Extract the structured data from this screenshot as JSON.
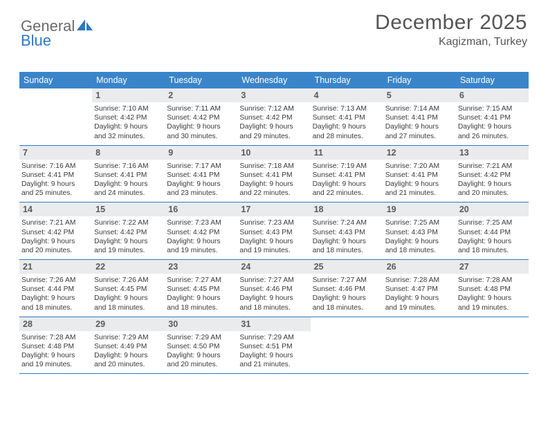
{
  "brand": {
    "part1": "General",
    "part2": "Blue"
  },
  "title": {
    "month": "December 2025",
    "location": "Kagizman, Turkey"
  },
  "colors": {
    "header_bg": "#3a85c9",
    "rule": "#2e78c2",
    "daynum_bg": "#e9ebec",
    "text": "#3a3a3a"
  },
  "dayNames": [
    "Sunday",
    "Monday",
    "Tuesday",
    "Wednesday",
    "Thursday",
    "Friday",
    "Saturday"
  ],
  "weeks": [
    [
      null,
      {
        "n": "1",
        "sr": "Sunrise: 7:10 AM",
        "ss": "Sunset: 4:42 PM",
        "d1": "Daylight: 9 hours",
        "d2": "and 32 minutes."
      },
      {
        "n": "2",
        "sr": "Sunrise: 7:11 AM",
        "ss": "Sunset: 4:42 PM",
        "d1": "Daylight: 9 hours",
        "d2": "and 30 minutes."
      },
      {
        "n": "3",
        "sr": "Sunrise: 7:12 AM",
        "ss": "Sunset: 4:42 PM",
        "d1": "Daylight: 9 hours",
        "d2": "and 29 minutes."
      },
      {
        "n": "4",
        "sr": "Sunrise: 7:13 AM",
        "ss": "Sunset: 4:41 PM",
        "d1": "Daylight: 9 hours",
        "d2": "and 28 minutes."
      },
      {
        "n": "5",
        "sr": "Sunrise: 7:14 AM",
        "ss": "Sunset: 4:41 PM",
        "d1": "Daylight: 9 hours",
        "d2": "and 27 minutes."
      },
      {
        "n": "6",
        "sr": "Sunrise: 7:15 AM",
        "ss": "Sunset: 4:41 PM",
        "d1": "Daylight: 9 hours",
        "d2": "and 26 minutes."
      }
    ],
    [
      {
        "n": "7",
        "sr": "Sunrise: 7:16 AM",
        "ss": "Sunset: 4:41 PM",
        "d1": "Daylight: 9 hours",
        "d2": "and 25 minutes."
      },
      {
        "n": "8",
        "sr": "Sunrise: 7:16 AM",
        "ss": "Sunset: 4:41 PM",
        "d1": "Daylight: 9 hours",
        "d2": "and 24 minutes."
      },
      {
        "n": "9",
        "sr": "Sunrise: 7:17 AM",
        "ss": "Sunset: 4:41 PM",
        "d1": "Daylight: 9 hours",
        "d2": "and 23 minutes."
      },
      {
        "n": "10",
        "sr": "Sunrise: 7:18 AM",
        "ss": "Sunset: 4:41 PM",
        "d1": "Daylight: 9 hours",
        "d2": "and 22 minutes."
      },
      {
        "n": "11",
        "sr": "Sunrise: 7:19 AM",
        "ss": "Sunset: 4:41 PM",
        "d1": "Daylight: 9 hours",
        "d2": "and 22 minutes."
      },
      {
        "n": "12",
        "sr": "Sunrise: 7:20 AM",
        "ss": "Sunset: 4:41 PM",
        "d1": "Daylight: 9 hours",
        "d2": "and 21 minutes."
      },
      {
        "n": "13",
        "sr": "Sunrise: 7:21 AM",
        "ss": "Sunset: 4:42 PM",
        "d1": "Daylight: 9 hours",
        "d2": "and 20 minutes."
      }
    ],
    [
      {
        "n": "14",
        "sr": "Sunrise: 7:21 AM",
        "ss": "Sunset: 4:42 PM",
        "d1": "Daylight: 9 hours",
        "d2": "and 20 minutes."
      },
      {
        "n": "15",
        "sr": "Sunrise: 7:22 AM",
        "ss": "Sunset: 4:42 PM",
        "d1": "Daylight: 9 hours",
        "d2": "and 19 minutes."
      },
      {
        "n": "16",
        "sr": "Sunrise: 7:23 AM",
        "ss": "Sunset: 4:42 PM",
        "d1": "Daylight: 9 hours",
        "d2": "and 19 minutes."
      },
      {
        "n": "17",
        "sr": "Sunrise: 7:23 AM",
        "ss": "Sunset: 4:43 PM",
        "d1": "Daylight: 9 hours",
        "d2": "and 19 minutes."
      },
      {
        "n": "18",
        "sr": "Sunrise: 7:24 AM",
        "ss": "Sunset: 4:43 PM",
        "d1": "Daylight: 9 hours",
        "d2": "and 18 minutes."
      },
      {
        "n": "19",
        "sr": "Sunrise: 7:25 AM",
        "ss": "Sunset: 4:43 PM",
        "d1": "Daylight: 9 hours",
        "d2": "and 18 minutes."
      },
      {
        "n": "20",
        "sr": "Sunrise: 7:25 AM",
        "ss": "Sunset: 4:44 PM",
        "d1": "Daylight: 9 hours",
        "d2": "and 18 minutes."
      }
    ],
    [
      {
        "n": "21",
        "sr": "Sunrise: 7:26 AM",
        "ss": "Sunset: 4:44 PM",
        "d1": "Daylight: 9 hours",
        "d2": "and 18 minutes."
      },
      {
        "n": "22",
        "sr": "Sunrise: 7:26 AM",
        "ss": "Sunset: 4:45 PM",
        "d1": "Daylight: 9 hours",
        "d2": "and 18 minutes."
      },
      {
        "n": "23",
        "sr": "Sunrise: 7:27 AM",
        "ss": "Sunset: 4:45 PM",
        "d1": "Daylight: 9 hours",
        "d2": "and 18 minutes."
      },
      {
        "n": "24",
        "sr": "Sunrise: 7:27 AM",
        "ss": "Sunset: 4:46 PM",
        "d1": "Daylight: 9 hours",
        "d2": "and 18 minutes."
      },
      {
        "n": "25",
        "sr": "Sunrise: 7:27 AM",
        "ss": "Sunset: 4:46 PM",
        "d1": "Daylight: 9 hours",
        "d2": "and 18 minutes."
      },
      {
        "n": "26",
        "sr": "Sunrise: 7:28 AM",
        "ss": "Sunset: 4:47 PM",
        "d1": "Daylight: 9 hours",
        "d2": "and 19 minutes."
      },
      {
        "n": "27",
        "sr": "Sunrise: 7:28 AM",
        "ss": "Sunset: 4:48 PM",
        "d1": "Daylight: 9 hours",
        "d2": "and 19 minutes."
      }
    ],
    [
      {
        "n": "28",
        "sr": "Sunrise: 7:28 AM",
        "ss": "Sunset: 4:48 PM",
        "d1": "Daylight: 9 hours",
        "d2": "and 19 minutes."
      },
      {
        "n": "29",
        "sr": "Sunrise: 7:29 AM",
        "ss": "Sunset: 4:49 PM",
        "d1": "Daylight: 9 hours",
        "d2": "and 20 minutes."
      },
      {
        "n": "30",
        "sr": "Sunrise: 7:29 AM",
        "ss": "Sunset: 4:50 PM",
        "d1": "Daylight: 9 hours",
        "d2": "and 20 minutes."
      },
      {
        "n": "31",
        "sr": "Sunrise: 7:29 AM",
        "ss": "Sunset: 4:51 PM",
        "d1": "Daylight: 9 hours",
        "d2": "and 21 minutes."
      },
      null,
      null,
      null
    ]
  ]
}
